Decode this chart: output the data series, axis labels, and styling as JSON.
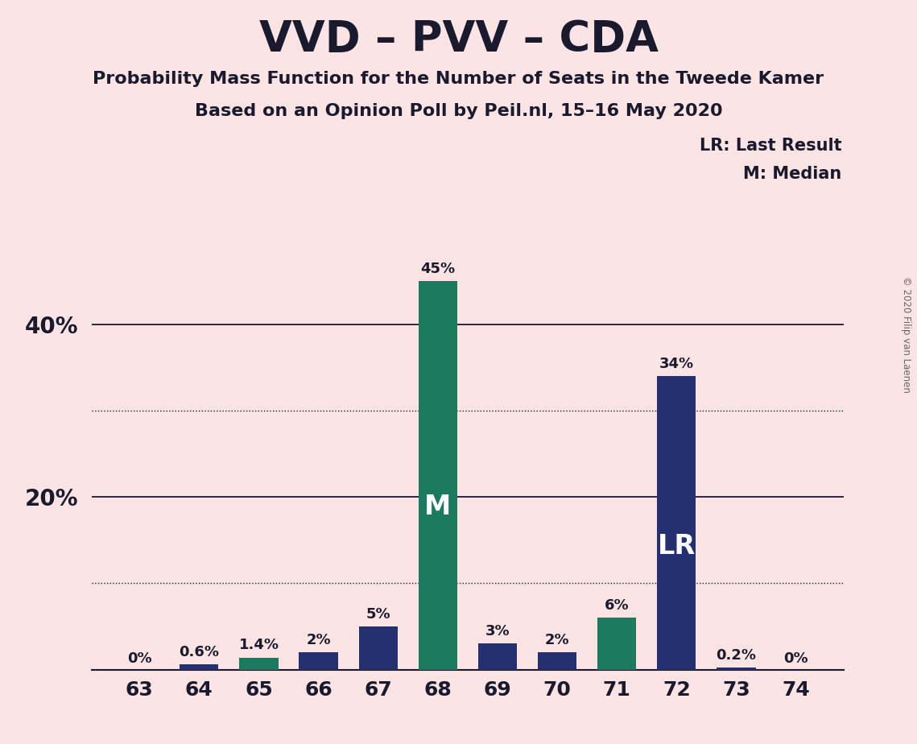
{
  "title": "VVD – PVV – CDA",
  "subtitle1": "Probability Mass Function for the Number of Seats in the Tweede Kamer",
  "subtitle2": "Based on an Opinion Poll by Peil.nl, 15–16 May 2020",
  "copyright": "© 2020 Filip van Laenen",
  "seats": [
    63,
    64,
    65,
    66,
    67,
    68,
    69,
    70,
    71,
    72,
    73,
    74
  ],
  "values": [
    0.0,
    0.6,
    1.4,
    2.0,
    5.0,
    45.0,
    3.0,
    2.0,
    6.0,
    34.0,
    0.2,
    0.0
  ],
  "labels": [
    "0%",
    "0.6%",
    "1.4%",
    "2%",
    "5%",
    "45%",
    "3%",
    "2%",
    "6%",
    "34%",
    "0.2%",
    "0%"
  ],
  "bar_colors": [
    "#253070",
    "#253070",
    "#1a7a5e",
    "#253070",
    "#253070",
    "#1a7a5e",
    "#253070",
    "#253070",
    "#1a7a5e",
    "#253070",
    "#253070",
    "#253070"
  ],
  "median_seat": 68,
  "lr_seat": 72,
  "background_color": "#fce4e4",
  "title_color": "#1a1a2e",
  "subtitle_color": "#1a1a2e",
  "axis_color": "#1a1a2e",
  "tick_color": "#1a1a2e",
  "ylim": [
    0,
    50
  ],
  "solid_gridlines": [
    20,
    40
  ],
  "dotted_gridlines": [
    10,
    30
  ],
  "legend_lr": "LR: Last Result",
  "legend_m": "M: Median",
  "bar_width": 0.65
}
